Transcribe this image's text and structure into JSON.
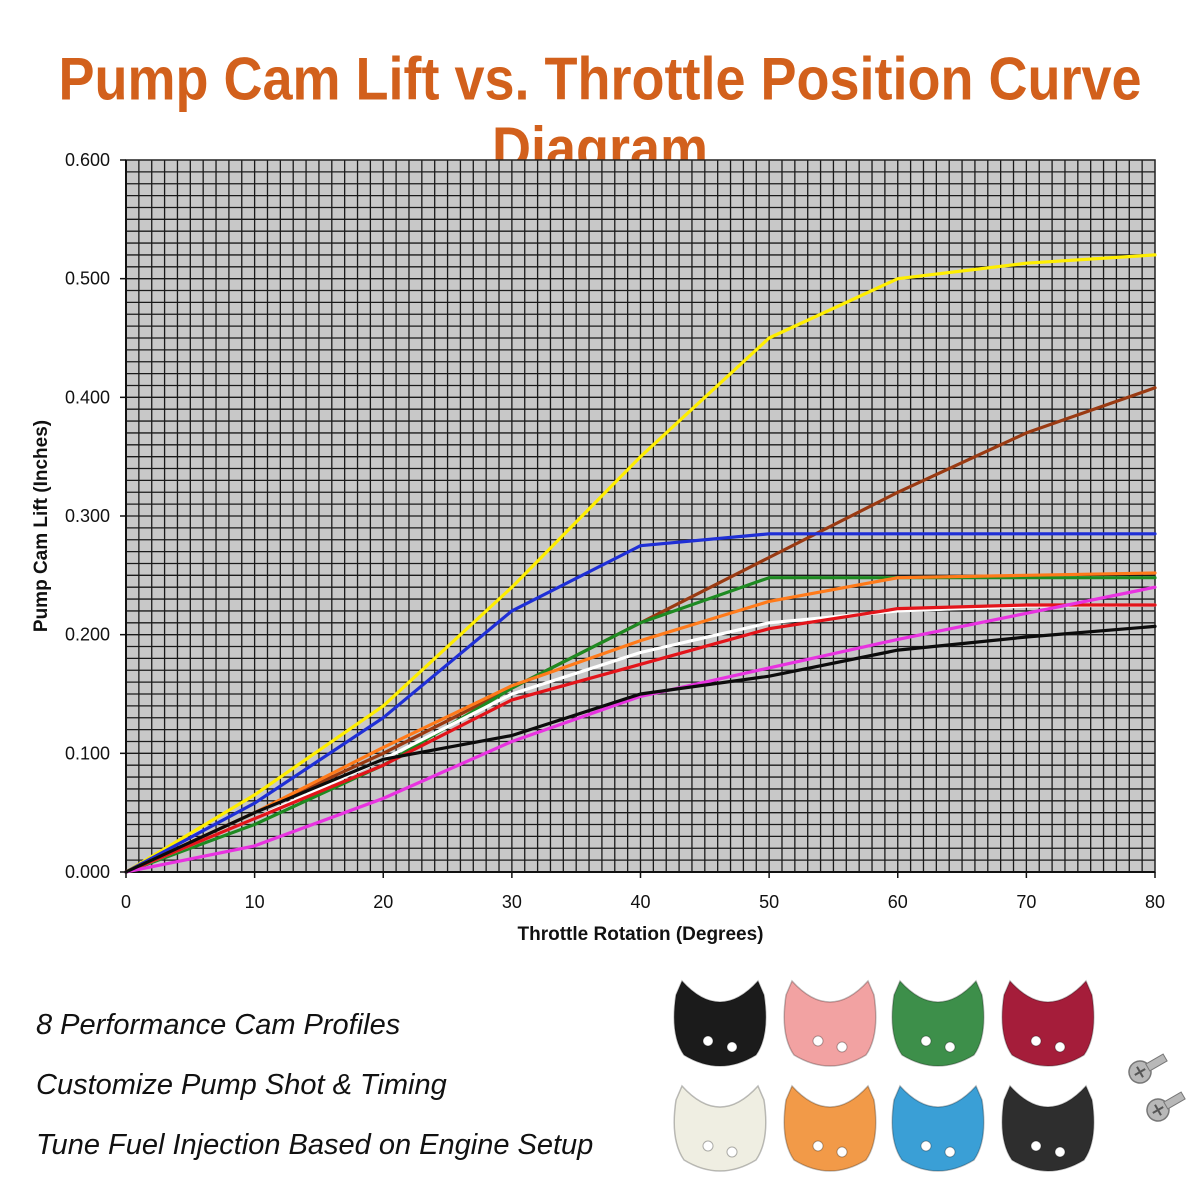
{
  "title": "Pump Cam Lift vs. Throttle Position Curve Diagram",
  "chart_data": {
    "type": "line",
    "xlabel": "Throttle Rotation (Degrees)",
    "ylabel": "Pump Cam Lift (Inches)",
    "xlim": [
      0,
      80
    ],
    "ylim": [
      0,
      0.6
    ],
    "xticks": [
      "0",
      "10",
      "20",
      "30",
      "40",
      "50",
      "60",
      "70",
      "80"
    ],
    "yticks": [
      "0.000",
      "0.100",
      "0.200",
      "0.300",
      "0.400",
      "0.500",
      "0.600"
    ],
    "grid": true,
    "background": "#c8c8c8",
    "series": [
      {
        "color": "#ffee00",
        "x": [
          0,
          10,
          20,
          30,
          40,
          50,
          60,
          70,
          80
        ],
        "y": [
          0,
          0.065,
          0.14,
          0.24,
          0.35,
          0.45,
          0.5,
          0.513,
          0.52
        ]
      },
      {
        "color": "#9a3a12",
        "x": [
          0,
          10,
          20,
          30,
          40,
          50,
          60,
          70,
          80
        ],
        "y": [
          0,
          0.05,
          0.1,
          0.155,
          0.21,
          0.265,
          0.32,
          0.37,
          0.408
        ]
      },
      {
        "color": "#1f2fd6",
        "x": [
          0,
          10,
          20,
          30,
          40,
          50,
          60,
          70,
          80
        ],
        "y": [
          0,
          0.058,
          0.13,
          0.22,
          0.275,
          0.285,
          0.285,
          0.285,
          0.285
        ]
      },
      {
        "color": "#1e8a22",
        "x": [
          0,
          10,
          20,
          30,
          40,
          50,
          60,
          70,
          80
        ],
        "y": [
          0,
          0.04,
          0.09,
          0.155,
          0.21,
          0.248,
          0.248,
          0.248,
          0.248
        ]
      },
      {
        "color": "#ff7a1a",
        "x": [
          0,
          10,
          20,
          30,
          40,
          50,
          60,
          70,
          80
        ],
        "y": [
          0,
          0.05,
          0.105,
          0.157,
          0.195,
          0.228,
          0.248,
          0.25,
          0.252
        ]
      },
      {
        "color": "#ffffff",
        "x": [
          0,
          10,
          20,
          30,
          40,
          50,
          60,
          70,
          80
        ],
        "y": [
          0,
          0.045,
          0.095,
          0.15,
          0.185,
          0.21,
          0.22,
          0.224,
          0.225
        ]
      },
      {
        "color": "#e3141a",
        "x": [
          0,
          10,
          20,
          30,
          40,
          50,
          60,
          70,
          80
        ],
        "y": [
          0,
          0.045,
          0.09,
          0.145,
          0.175,
          0.205,
          0.222,
          0.225,
          0.225
        ]
      },
      {
        "color": "#e832e0",
        "x": [
          0,
          10,
          20,
          30,
          40,
          50,
          60,
          70,
          80
        ],
        "y": [
          0,
          0.022,
          0.062,
          0.11,
          0.148,
          0.172,
          0.196,
          0.218,
          0.24
        ]
      },
      {
        "color": "#0c0c0c",
        "x": [
          0,
          10,
          20,
          30,
          40,
          50,
          60,
          70,
          80
        ],
        "y": [
          0,
          0.05,
          0.095,
          0.115,
          0.15,
          0.165,
          0.187,
          0.198,
          0.207
        ]
      }
    ]
  },
  "features": [
    "8 Performance Cam Profiles",
    "Customize Pump Shot & Timing",
    "Tune Fuel Injection Based on Engine Setup"
  ],
  "cams": [
    {
      "color": "#1b1b1b"
    },
    {
      "color": "#f2a2a2"
    },
    {
      "color": "#3d8f4a"
    },
    {
      "color": "#a51d3a"
    },
    {
      "color": "#efeee2"
    },
    {
      "color": "#f29a48"
    },
    {
      "color": "#3a9fd6"
    },
    {
      "color": "#2e2e2e"
    }
  ],
  "screw_color": "#b8b8b8"
}
